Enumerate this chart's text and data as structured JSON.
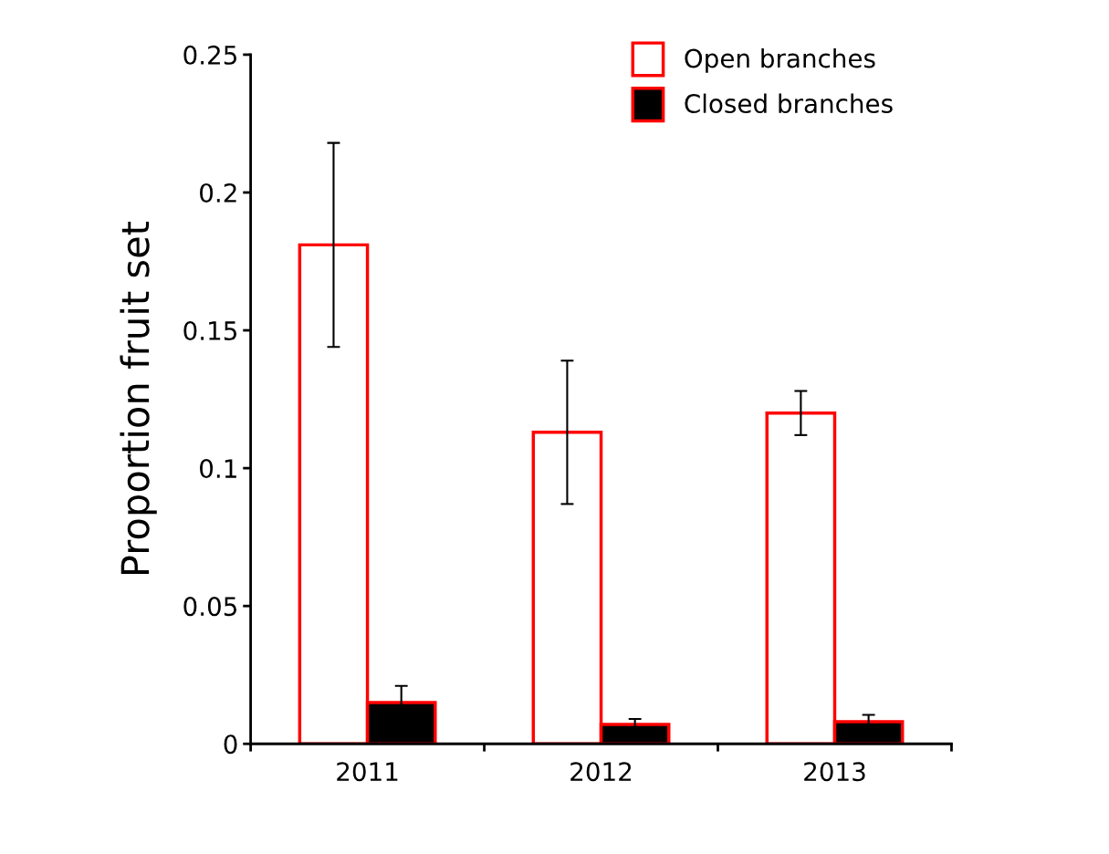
{
  "chart_data": {
    "type": "bar",
    "ylabel": "Proportion fruit set",
    "categories": [
      "2011",
      "2012",
      "2013"
    ],
    "series": [
      {
        "name": "Open branches",
        "color": "#ffffff",
        "values": [
          0.181,
          0.113,
          0.12
        ],
        "errors": [
          0.037,
          0.026,
          0.008
        ]
      },
      {
        "name": "Closed branches",
        "color": "#000000",
        "values": [
          0.015,
          0.007,
          0.008
        ],
        "errors": [
          0.006,
          0.002,
          0.0025
        ]
      }
    ],
    "ylim": [
      0,
      0.25
    ],
    "yticks": [
      {
        "value": 0,
        "label": "0"
      },
      {
        "value": 0.05,
        "label": "0.05"
      },
      {
        "value": 0.1,
        "label": "0.1"
      },
      {
        "value": 0.15,
        "label": "0.15"
      },
      {
        "value": 0.2,
        "label": "0.2"
      },
      {
        "value": 0.25,
        "label": "0.25"
      }
    ],
    "grid": false,
    "legend": "top right"
  }
}
